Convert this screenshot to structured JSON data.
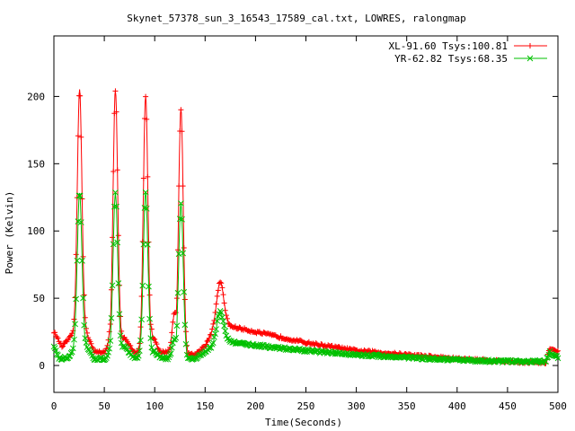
{
  "chart_data": {
    "type": "line",
    "title": "Skynet_57378_sun_3_16543_17589_cal.txt, LOWRES, ralongmap",
    "xlabel": "Time(Seconds)",
    "ylabel": "Power (Kelvin)",
    "xlim": [
      0,
      500
    ],
    "ylim": [
      -20,
      245
    ],
    "xticks": [
      0,
      50,
      100,
      150,
      200,
      250,
      300,
      350,
      400,
      450,
      500
    ],
    "yticks": [
      0,
      50,
      100,
      150,
      200
    ],
    "grid": false,
    "legend_position": "top-right",
    "series": [
      {
        "name": "XL-91.60 Tsys:100.81",
        "color": "#ff0000",
        "marker": "plus",
        "peaks": [
          {
            "center": 25.5,
            "height": 205,
            "width": 2.3
          },
          {
            "center": 61,
            "height": 205,
            "width": 2.3
          },
          {
            "center": 91,
            "height": 200,
            "width": 2.3
          },
          {
            "center": 126,
            "height": 191,
            "width": 2.3
          },
          {
            "center": 165,
            "height": 62,
            "width": 3.5
          },
          {
            "center": 58,
            "height": 30,
            "width": 2.5
          },
          {
            "center": 95,
            "height": 30,
            "width": 2.5
          },
          {
            "center": 120,
            "height": 40,
            "width": 2.5
          },
          {
            "center": 30,
            "height": 20,
            "width": 2.5
          },
          {
            "center": 99,
            "height": 20,
            "width": 2.5
          }
        ],
        "baseline_points": [
          [
            0,
            25
          ],
          [
            8,
            14
          ],
          [
            15,
            20
          ],
          [
            22,
            25
          ],
          [
            32,
            25
          ],
          [
            40,
            10
          ],
          [
            50,
            10
          ],
          [
            70,
            20
          ],
          [
            80,
            10
          ],
          [
            102,
            10
          ],
          [
            110,
            10
          ],
          [
            140,
            8
          ],
          [
            150,
            15
          ],
          [
            158,
            25
          ],
          [
            170,
            30
          ],
          [
            200,
            25
          ],
          [
            250,
            17
          ],
          [
            300,
            11
          ],
          [
            350,
            8
          ],
          [
            400,
            5
          ],
          [
            450,
            3
          ],
          [
            488,
            2
          ],
          [
            492,
            13
          ],
          [
            500,
            10
          ]
        ]
      },
      {
        "name": "YR-62.82 Tsys:68.35",
        "color": "#00c000",
        "marker": "cross",
        "peaks": [
          {
            "center": 25.5,
            "height": 128,
            "width": 2.3
          },
          {
            "center": 61,
            "height": 128,
            "width": 2.3
          },
          {
            "center": 91,
            "height": 128,
            "width": 2.3
          },
          {
            "center": 126,
            "height": 120,
            "width": 2.3
          },
          {
            "center": 165,
            "height": 40,
            "width": 3.5
          },
          {
            "center": 120,
            "height": 20,
            "width": 2.5
          },
          {
            "center": 58,
            "height": 12,
            "width": 2.5
          }
        ],
        "baseline_points": [
          [
            0,
            14
          ],
          [
            5,
            5
          ],
          [
            15,
            6
          ],
          [
            22,
            14
          ],
          [
            32,
            14
          ],
          [
            40,
            5
          ],
          [
            50,
            5
          ],
          [
            70,
            14
          ],
          [
            80,
            5
          ],
          [
            100,
            10
          ],
          [
            108,
            5
          ],
          [
            140,
            5
          ],
          [
            150,
            10
          ],
          [
            158,
            14
          ],
          [
            170,
            18
          ],
          [
            200,
            15
          ],
          [
            250,
            11
          ],
          [
            300,
            8
          ],
          [
            350,
            6
          ],
          [
            400,
            4
          ],
          [
            450,
            3
          ],
          [
            488,
            3
          ],
          [
            492,
            10
          ],
          [
            500,
            6
          ]
        ]
      }
    ]
  }
}
